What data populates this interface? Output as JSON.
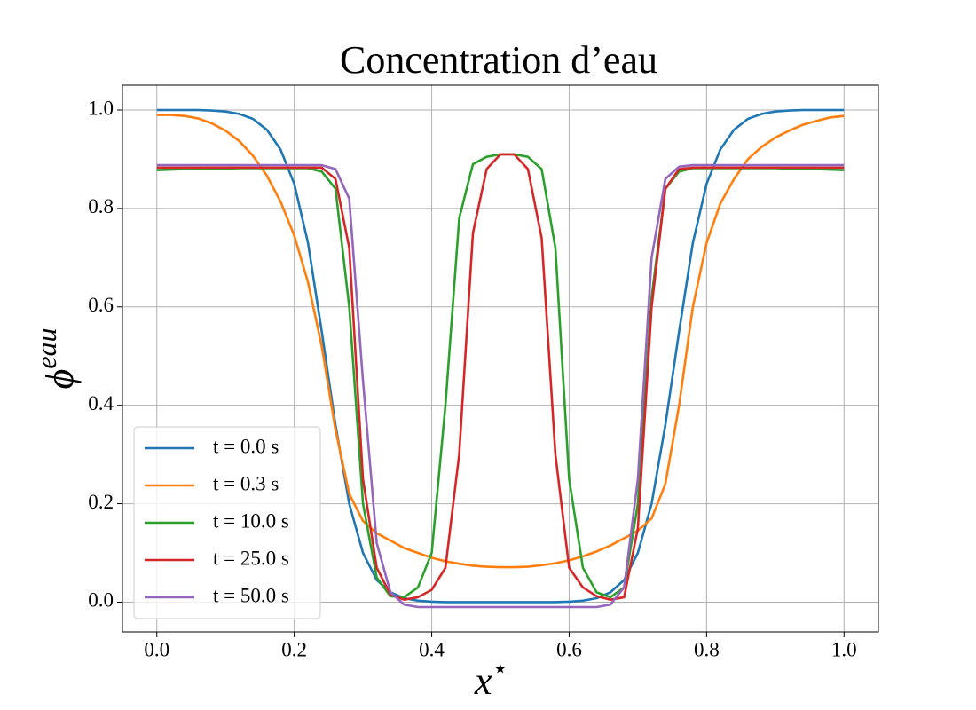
{
  "chart_data": {
    "type": "line",
    "title": "Concentration d’eau",
    "xlabel": [
      "x",
      "⋆"
    ],
    "ylabel": [
      "ϕ",
      "eau"
    ],
    "xlim": [
      -0.05,
      1.05
    ],
    "ylim": [
      -0.0605,
      1.0505
    ],
    "xticks": [
      {
        "value": 0,
        "label": "0.0"
      },
      0.2,
      0.4,
      0.6,
      0.8,
      {
        "value": 1,
        "label": "1.0"
      }
    ],
    "yticks": [
      {
        "value": 0,
        "label": "0.0"
      },
      0.2,
      0.4,
      0.6,
      0.8,
      {
        "value": 1,
        "label": "1.0"
      }
    ],
    "grid": true,
    "legend": "lower left",
    "x": [
      0,
      0.02,
      0.04,
      0.06,
      0.08,
      0.1,
      0.12,
      0.14,
      0.16,
      0.18,
      0.2,
      0.22,
      0.24,
      0.26,
      0.28,
      0.3,
      0.32,
      0.34,
      0.36,
      0.38,
      0.4,
      0.42,
      0.44,
      0.46,
      0.48,
      0.5,
      0.52,
      0.54,
      0.56,
      0.58,
      0.6,
      0.62,
      0.64,
      0.66,
      0.68,
      0.7,
      0.72,
      0.74,
      0.76,
      0.78,
      0.8,
      0.82,
      0.84,
      0.86,
      0.88,
      0.9,
      0.92,
      0.94,
      0.96,
      0.98,
      1
    ],
    "series": [
      {
        "name": "t = 0.0 s",
        "color": "#1f77b4",
        "values": [
          1.0,
          1.0,
          1.0,
          1.0,
          0.999,
          0.997,
          0.992,
          0.982,
          0.96,
          0.92,
          0.85,
          0.73,
          0.55,
          0.36,
          0.2,
          0.1,
          0.045,
          0.02,
          0.008,
          0.003,
          0.001,
          0.0,
          0.0,
          0.0,
          0.0,
          0.0,
          0.0,
          0.0,
          0.0,
          0.0,
          0.001,
          0.003,
          0.008,
          0.02,
          0.045,
          0.1,
          0.2,
          0.36,
          0.55,
          0.73,
          0.85,
          0.92,
          0.96,
          0.982,
          0.992,
          0.997,
          0.999,
          1.0,
          1.0,
          1.0,
          1.0
        ]
      },
      {
        "name": "t = 0.3 s",
        "color": "#ff7f0e",
        "values": [
          0.99,
          0.99,
          0.988,
          0.983,
          0.973,
          0.958,
          0.937,
          0.907,
          0.867,
          0.814,
          0.745,
          0.65,
          0.52,
          0.35,
          0.22,
          0.165,
          0.14,
          0.125,
          0.11,
          0.1,
          0.09,
          0.083,
          0.078,
          0.074,
          0.072,
          0.071,
          0.071,
          0.072,
          0.075,
          0.079,
          0.085,
          0.093,
          0.103,
          0.115,
          0.13,
          0.145,
          0.17,
          0.24,
          0.4,
          0.6,
          0.73,
          0.81,
          0.86,
          0.9,
          0.925,
          0.944,
          0.958,
          0.97,
          0.978,
          0.985,
          0.988
        ]
      },
      {
        "name": "t = 10.0 s",
        "color": "#2ca02c",
        "values": [
          0.878,
          0.879,
          0.88,
          0.88,
          0.881,
          0.881,
          0.882,
          0.882,
          0.882,
          0.882,
          0.882,
          0.882,
          0.875,
          0.84,
          0.6,
          0.2,
          0.05,
          0.012,
          0.01,
          0.03,
          0.1,
          0.4,
          0.78,
          0.89,
          0.905,
          0.91,
          0.91,
          0.905,
          0.88,
          0.72,
          0.25,
          0.07,
          0.02,
          0.01,
          0.03,
          0.2,
          0.62,
          0.84,
          0.875,
          0.882,
          0.882,
          0.882,
          0.882,
          0.882,
          0.882,
          0.882,
          0.881,
          0.881,
          0.88,
          0.879,
          0.878
        ]
      },
      {
        "name": "t = 25.0 s",
        "color": "#d62728",
        "values": [
          0.883,
          0.883,
          0.883,
          0.883,
          0.883,
          0.883,
          0.883,
          0.883,
          0.883,
          0.883,
          0.883,
          0.883,
          0.883,
          0.86,
          0.72,
          0.25,
          0.07,
          0.015,
          0.005,
          0.01,
          0.025,
          0.07,
          0.3,
          0.75,
          0.88,
          0.91,
          0.91,
          0.88,
          0.74,
          0.3,
          0.07,
          0.03,
          0.012,
          0.005,
          0.01,
          0.15,
          0.6,
          0.84,
          0.88,
          0.883,
          0.883,
          0.883,
          0.883,
          0.883,
          0.883,
          0.883,
          0.883,
          0.883,
          0.883,
          0.883,
          0.883
        ]
      },
      {
        "name": "t = 50.0 s",
        "color": "#9467bd",
        "values": [
          0.888,
          0.888,
          0.888,
          0.888,
          0.888,
          0.888,
          0.888,
          0.888,
          0.888,
          0.888,
          0.888,
          0.888,
          0.888,
          0.88,
          0.82,
          0.45,
          0.12,
          0.02,
          -0.005,
          -0.01,
          -0.01,
          -0.01,
          -0.01,
          -0.01,
          -0.01,
          -0.01,
          -0.01,
          -0.01,
          -0.01,
          -0.01,
          -0.01,
          -0.01,
          -0.01,
          -0.005,
          0.03,
          0.25,
          0.7,
          0.86,
          0.885,
          0.888,
          0.888,
          0.888,
          0.888,
          0.888,
          0.888,
          0.888,
          0.888,
          0.888,
          0.888,
          0.888,
          0.888
        ]
      }
    ]
  }
}
